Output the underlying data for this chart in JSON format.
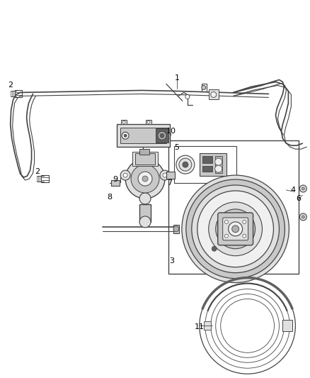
{
  "bg_color": "#ffffff",
  "line_color": "#444444",
  "label_color": "#000000",
  "figsize": [
    4.38,
    5.33
  ],
  "dpi": 100,
  "gray1": "#c8c8c8",
  "gray2": "#e0e0e0",
  "gray3": "#b0b0b0",
  "gray4": "#f0f0f0",
  "dark_gray": "#606060"
}
